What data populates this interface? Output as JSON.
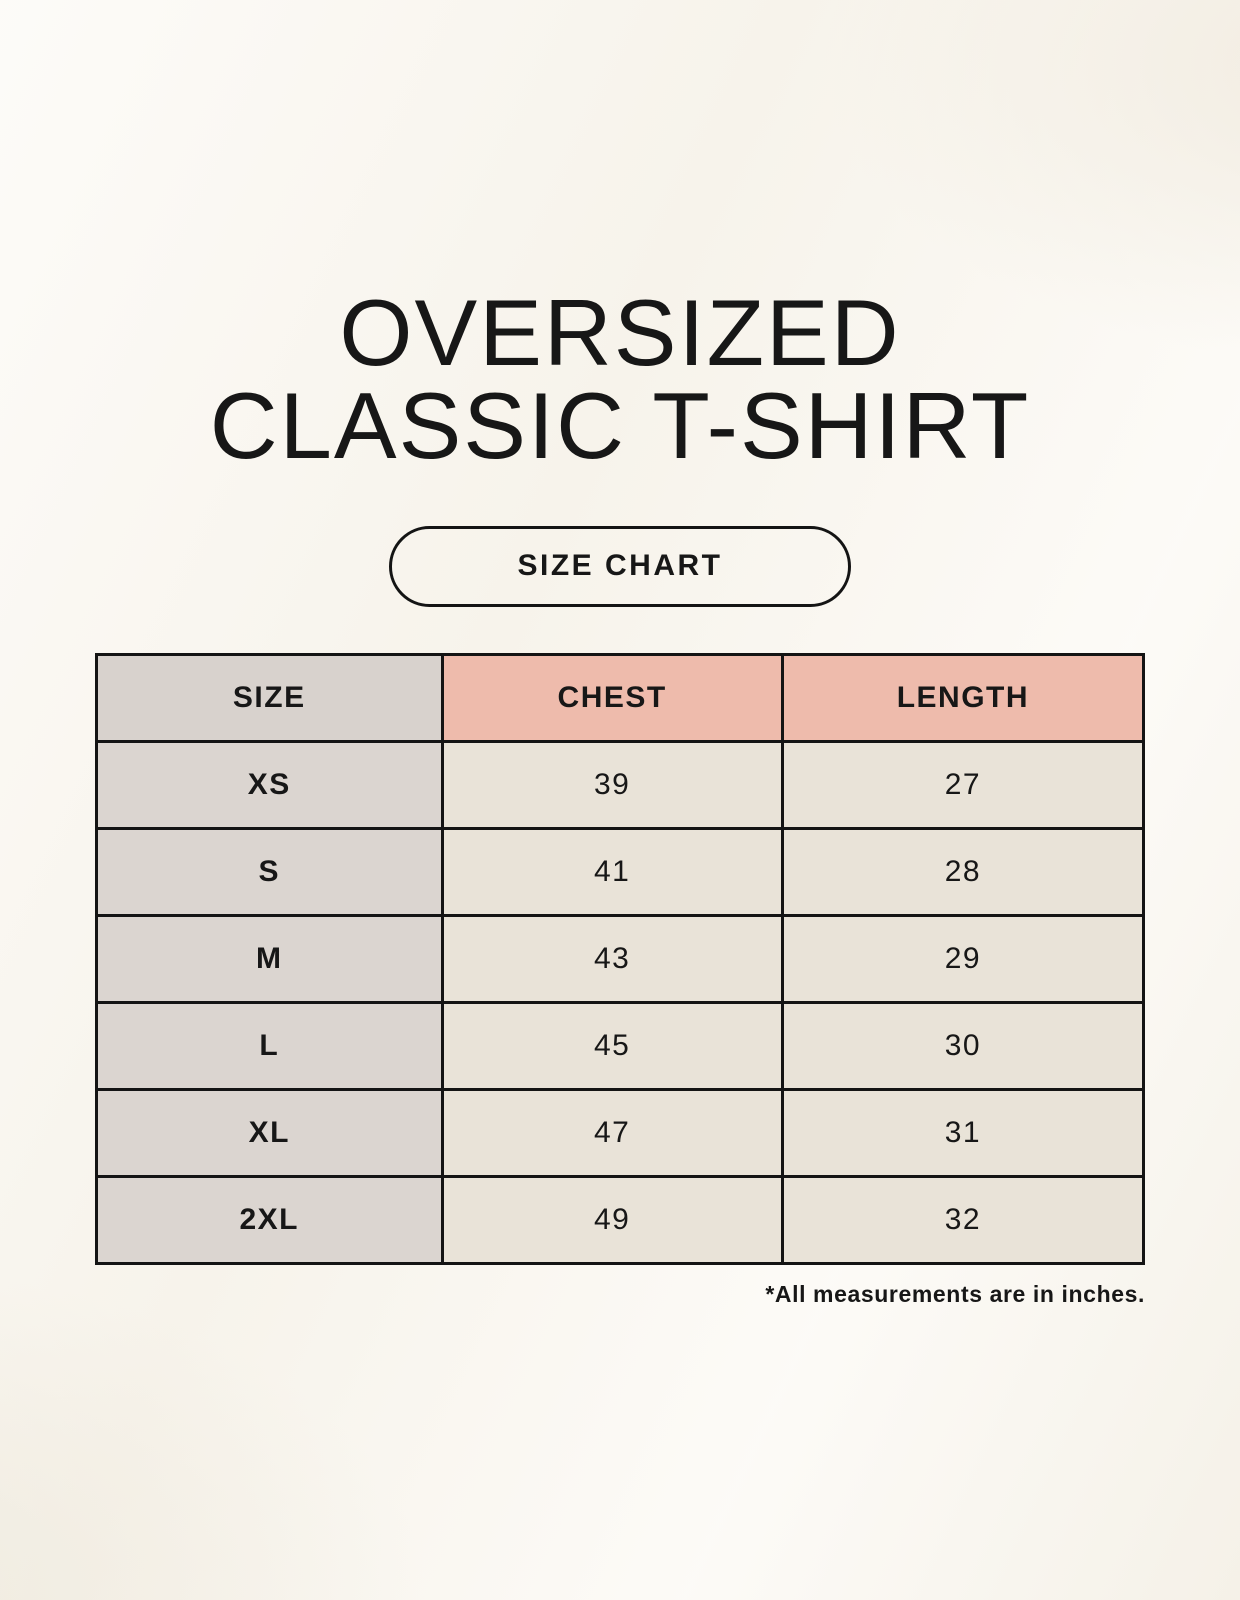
{
  "title": {
    "line1": "OVERSIZED",
    "line2": "CLASSIC T-SHIRT"
  },
  "badge": {
    "label": "SIZE CHART"
  },
  "footnote": "*All measurements are in inches.",
  "colors": {
    "background": "#faf7f0",
    "text": "#171717",
    "border": "#141414",
    "header_size_bg": "#d8d2cd",
    "header_measure_bg": "#eebbac",
    "size_col_bg": "#dbd5d0",
    "data_cell_bg": "#e9e3d8"
  },
  "chart_data": {
    "type": "table",
    "title": "Oversized Classic T-Shirt Size Chart",
    "columns": [
      "SIZE",
      "CHEST",
      "LENGTH"
    ],
    "rows": [
      [
        "XS",
        "39",
        "27"
      ],
      [
        "S",
        "41",
        "28"
      ],
      [
        "M",
        "43",
        "29"
      ],
      [
        "L",
        "45",
        "30"
      ],
      [
        "XL",
        "47",
        "31"
      ],
      [
        "2XL",
        "49",
        "32"
      ]
    ],
    "units": "inches"
  }
}
